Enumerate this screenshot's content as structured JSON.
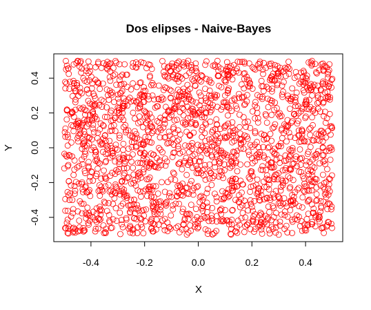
{
  "chart_data": {
    "type": "scatter",
    "title": "Dos elipses - Naive-Bayes",
    "xlabel": "X",
    "ylabel": "Y",
    "xlim": [
      -0.5,
      0.5
    ],
    "ylim": [
      -0.5,
      0.5
    ],
    "x_ticks": [
      -0.4,
      -0.2,
      0.0,
      0.2,
      0.4
    ],
    "x_tick_labels": [
      "-0.4",
      "-0.2",
      "0.0",
      "0.2",
      "0.4"
    ],
    "y_ticks": [
      -0.4,
      -0.2,
      0.0,
      0.2,
      0.4
    ],
    "y_tick_labels": [
      "-0.4",
      "-0.2",
      "0.0",
      "0.2",
      "0.4"
    ],
    "grid": false,
    "legend": "none",
    "marker": "open-circle",
    "point_color": "#ff0000",
    "distribution": "uniform",
    "point_count": 2000,
    "series": [
      {
        "points": [
          [
            -0.485,
            0.455
          ],
          [
            -0.44,
            0.49
          ],
          [
            -0.395,
            0.37
          ],
          [
            -0.335,
            0.47
          ],
          [
            -0.29,
            0.41
          ],
          [
            -0.225,
            0.48
          ],
          [
            -0.175,
            0.36
          ],
          [
            -0.105,
            0.44
          ],
          [
            -0.055,
            0.49
          ],
          [
            0.01,
            0.38
          ],
          [
            0.075,
            0.465
          ],
          [
            0.13,
            0.43
          ],
          [
            0.19,
            0.485
          ],
          [
            0.255,
            0.35
          ],
          [
            0.305,
            0.46
          ],
          [
            0.37,
            0.41
          ],
          [
            0.42,
            0.49
          ],
          [
            0.465,
            0.38
          ],
          [
            -0.47,
            0.2
          ],
          [
            -0.41,
            0.27
          ],
          [
            -0.355,
            0.13
          ],
          [
            -0.3,
            0.23
          ],
          [
            -0.245,
            0.06
          ],
          [
            -0.19,
            0.18
          ],
          [
            -0.13,
            0.28
          ],
          [
            -0.075,
            0.1
          ],
          [
            -0.02,
            0.21
          ],
          [
            0.045,
            0.15
          ],
          [
            0.1,
            0.3
          ],
          [
            0.155,
            0.05
          ],
          [
            0.22,
            0.2
          ],
          [
            0.275,
            0.27
          ],
          [
            0.33,
            0.12
          ],
          [
            0.385,
            0.23
          ],
          [
            0.44,
            0.08
          ],
          [
            0.48,
            0.17
          ],
          [
            -0.49,
            -0.05
          ],
          [
            -0.43,
            0.02
          ],
          [
            -0.375,
            -0.12
          ],
          [
            -0.32,
            -0.02
          ],
          [
            -0.26,
            -0.17
          ],
          [
            -0.205,
            0.03
          ],
          [
            -0.145,
            -0.08
          ],
          [
            -0.09,
            -0.15
          ],
          [
            -0.035,
            0.01
          ],
          [
            0.025,
            -0.1
          ],
          [
            0.085,
            -0.03
          ],
          [
            0.14,
            -0.18
          ],
          [
            0.2,
            -0.06
          ],
          [
            0.26,
            0.0
          ],
          [
            0.315,
            -0.13
          ],
          [
            0.365,
            -0.05
          ],
          [
            0.425,
            -0.16
          ],
          [
            0.475,
            -0.02
          ],
          [
            -0.48,
            -0.3
          ],
          [
            -0.42,
            -0.22
          ],
          [
            -0.36,
            -0.36
          ],
          [
            -0.31,
            -0.26
          ],
          [
            -0.25,
            -0.33
          ],
          [
            -0.195,
            -0.24
          ],
          [
            -0.14,
            -0.38
          ],
          [
            -0.08,
            -0.28
          ],
          [
            -0.03,
            -0.21
          ],
          [
            0.035,
            -0.34
          ],
          [
            0.09,
            -0.25
          ],
          [
            0.15,
            -0.31
          ],
          [
            0.205,
            -0.22
          ],
          [
            0.265,
            -0.37
          ],
          [
            0.32,
            -0.29
          ],
          [
            0.375,
            -0.23
          ],
          [
            0.43,
            -0.35
          ],
          [
            0.485,
            -0.27
          ],
          [
            -0.465,
            -0.46
          ],
          [
            -0.405,
            -0.42
          ],
          [
            -0.345,
            -0.49
          ],
          [
            -0.285,
            -0.44
          ],
          [
            -0.23,
            -0.41
          ],
          [
            -0.17,
            -0.48
          ],
          [
            -0.115,
            -0.43
          ],
          [
            -0.06,
            -0.47
          ],
          [
            0.0,
            -0.42
          ],
          [
            0.06,
            -0.49
          ],
          [
            0.115,
            -0.44
          ],
          [
            0.175,
            -0.4
          ],
          [
            0.235,
            -0.47
          ],
          [
            0.29,
            -0.43
          ],
          [
            0.35,
            -0.49
          ],
          [
            0.405,
            -0.41
          ],
          [
            0.46,
            -0.46
          ]
        ]
      }
    ]
  }
}
